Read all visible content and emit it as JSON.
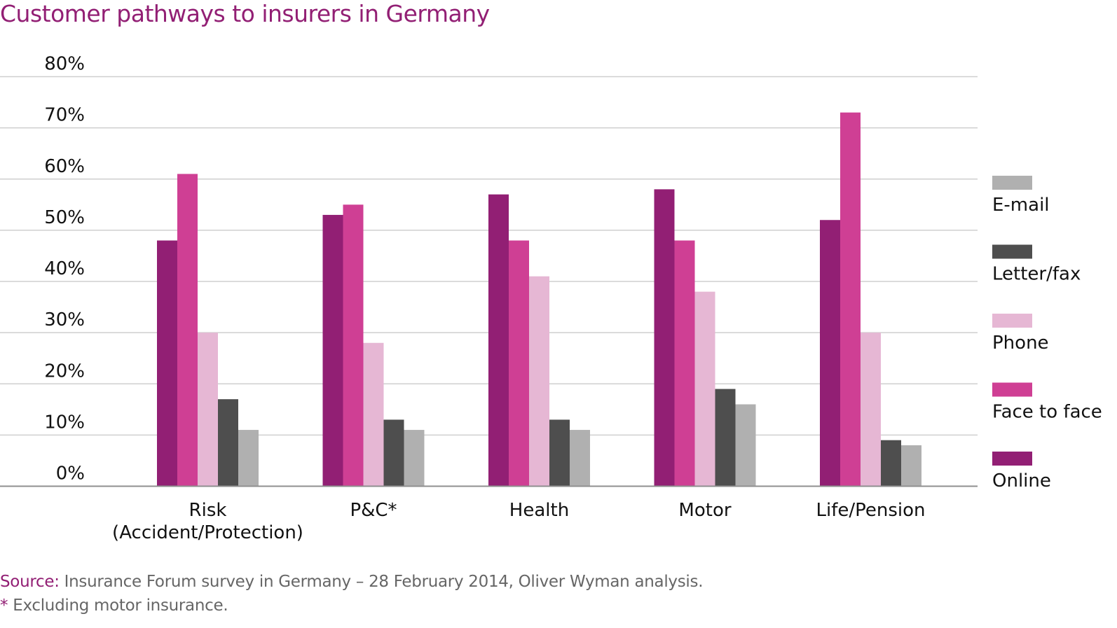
{
  "chart_data": {
    "type": "bar",
    "title": "Customer pathways to insurers in Germany",
    "xlabel": "",
    "ylabel": "",
    "ylim": [
      0,
      80
    ],
    "yticks": [
      0,
      10,
      20,
      30,
      40,
      50,
      60,
      70,
      80
    ],
    "ytick_labels": [
      "0%",
      "10%",
      "20%",
      "30%",
      "40%",
      "50%",
      "60%",
      "70%",
      "80%"
    ],
    "grid": true,
    "legend_position": "right",
    "categories": [
      "Risk (Accident/Protection)",
      "P&C*",
      "Health",
      "Motor",
      "Life/Pension"
    ],
    "category_labels": [
      [
        "Risk",
        "(Accident/Protection)"
      ],
      [
        "P&C*"
      ],
      [
        "Health"
      ],
      [
        "Motor"
      ],
      [
        "Life/Pension"
      ]
    ],
    "series": [
      {
        "name": "Online",
        "color": "#921f74",
        "values": [
          48,
          53,
          57,
          58,
          52
        ]
      },
      {
        "name": "Face to face",
        "color": "#cf3f94",
        "values": [
          61,
          55,
          48,
          48,
          73
        ]
      },
      {
        "name": "Phone",
        "color": "#e6b7d4",
        "values": [
          30,
          28,
          41,
          38,
          30
        ]
      },
      {
        "name": "Letter/fax",
        "color": "#4e4e4e",
        "values": [
          17,
          13,
          13,
          19,
          9
        ]
      },
      {
        "name": "E-mail",
        "color": "#b0b0b0",
        "values": [
          11,
          11,
          11,
          16,
          8
        ]
      }
    ],
    "legend_order": [
      "E-mail",
      "Letter/fax",
      "Phone",
      "Face to face",
      "Online"
    ]
  },
  "footer": {
    "source_label": "Source:",
    "source_text": " Insurance Forum survey in Germany – 28 February 2014, Oliver Wyman analysis.",
    "note_marker": "*",
    "note_text": " Excluding motor insurance."
  }
}
